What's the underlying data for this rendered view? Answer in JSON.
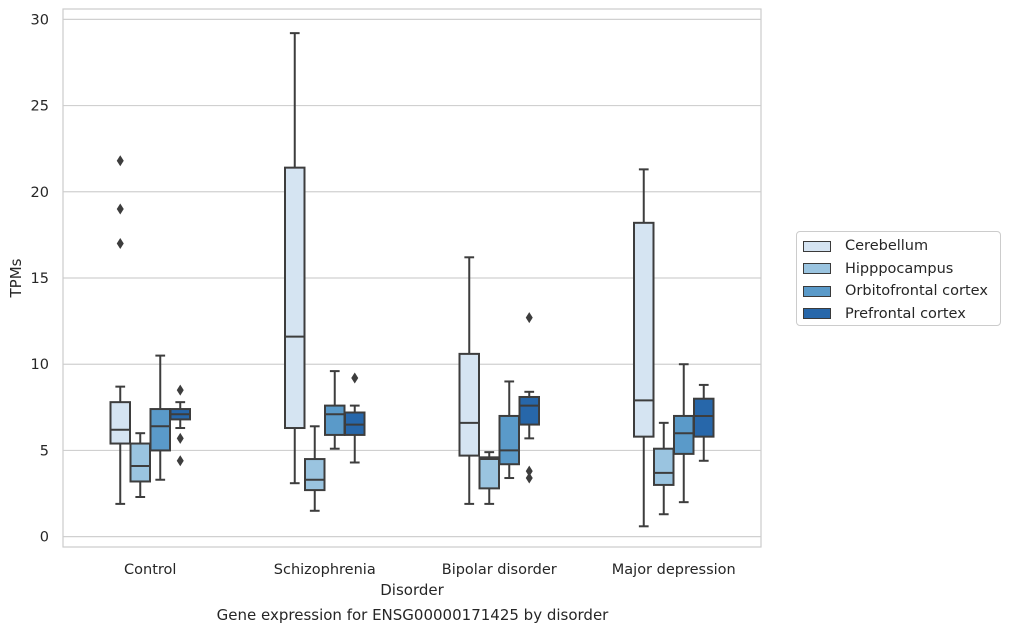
{
  "chart_data": {
    "type": "boxplot",
    "caption": "Gene expression for ENSG00000171425 by disorder",
    "xlabel": "Disorder",
    "ylabel": "TPMs",
    "ylim": [
      -0.6,
      30.6
    ],
    "yticks": [
      "0",
      "5",
      "10",
      "15",
      "20",
      "25",
      "30"
    ],
    "grid": true,
    "legend_position": "right",
    "categories": [
      "Control",
      "Schizophrenia",
      "Bipolar disorder",
      "Major depression"
    ],
    "series": [
      {
        "name": "Cerebellum",
        "color": "#d5e4f2",
        "boxes": [
          {
            "whisker_low": 1.9,
            "q1": 5.4,
            "median": 6.2,
            "q3": 7.8,
            "whisker_high": 8.7,
            "outliers": [
              17.0,
              19.0,
              21.8
            ]
          },
          {
            "whisker_low": 3.1,
            "q1": 6.3,
            "median": 11.6,
            "q3": 21.4,
            "whisker_high": 29.2,
            "outliers": []
          },
          {
            "whisker_low": 1.9,
            "q1": 4.7,
            "median": 6.6,
            "q3": 10.6,
            "whisker_high": 16.2,
            "outliers": []
          },
          {
            "whisker_low": 0.6,
            "q1": 5.8,
            "median": 7.9,
            "q3": 18.2,
            "whisker_high": 21.3,
            "outliers": []
          }
        ]
      },
      {
        "name": "Hipppocampus",
        "color": "#9ac4e0",
        "boxes": [
          {
            "whisker_low": 2.3,
            "q1": 3.2,
            "median": 4.1,
            "q3": 5.4,
            "whisker_high": 6.0,
            "outliers": []
          },
          {
            "whisker_low": 1.5,
            "q1": 2.7,
            "median": 3.3,
            "q3": 4.5,
            "whisker_high": 6.4,
            "outliers": []
          },
          {
            "whisker_low": 1.9,
            "q1": 2.8,
            "median": 4.5,
            "q3": 4.6,
            "whisker_high": 4.9,
            "outliers": []
          },
          {
            "whisker_low": 1.3,
            "q1": 3.0,
            "median": 3.7,
            "q3": 5.1,
            "whisker_high": 6.6,
            "outliers": []
          }
        ]
      },
      {
        "name": "Orbitofrontal cortex",
        "color": "#5a9ac9",
        "boxes": [
          {
            "whisker_low": 3.3,
            "q1": 5.0,
            "median": 6.4,
            "q3": 7.4,
            "whisker_high": 10.5,
            "outliers": []
          },
          {
            "whisker_low": 5.1,
            "q1": 5.9,
            "median": 7.1,
            "q3": 7.6,
            "whisker_high": 9.6,
            "outliers": []
          },
          {
            "whisker_low": 3.4,
            "q1": 4.2,
            "median": 5.0,
            "q3": 7.0,
            "whisker_high": 9.0,
            "outliers": []
          },
          {
            "whisker_low": 2.0,
            "q1": 4.8,
            "median": 6.0,
            "q3": 7.0,
            "whisker_high": 10.0,
            "outliers": []
          }
        ]
      },
      {
        "name": "Prefrontal cortex",
        "color": "#2767aa",
        "boxes": [
          {
            "whisker_low": 6.3,
            "q1": 6.8,
            "median": 7.1,
            "q3": 7.4,
            "whisker_high": 7.8,
            "outliers": [
              4.4,
              5.7,
              8.5
            ]
          },
          {
            "whisker_low": 4.3,
            "q1": 5.9,
            "median": 6.5,
            "q3": 7.2,
            "whisker_high": 7.6,
            "outliers": [
              9.2
            ]
          },
          {
            "whisker_low": 5.7,
            "q1": 6.5,
            "median": 7.6,
            "q3": 8.1,
            "whisker_high": 8.4,
            "outliers": [
              3.4,
              3.8,
              12.7
            ]
          },
          {
            "whisker_low": 4.4,
            "q1": 5.8,
            "median": 7.0,
            "q3": 8.0,
            "whisker_high": 8.8,
            "outliers": []
          }
        ]
      }
    ]
  }
}
